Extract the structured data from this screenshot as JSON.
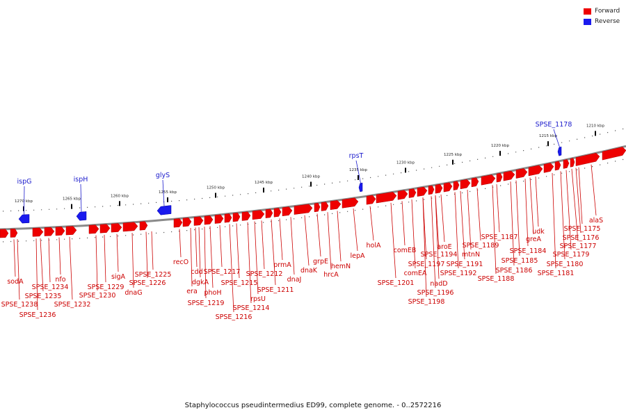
{
  "legend": {
    "forward": {
      "label": "Forward",
      "color": "#ee0000"
    },
    "reverse": {
      "label": "Reverse",
      "color": "#1a1aee"
    }
  },
  "colors": {
    "backbone": "#8a8a8a",
    "forward": "#ee0000",
    "reverse": "#1a1aee",
    "forward_label": "#cc0000",
    "reverse_label": "#1a1acc"
  },
  "caption": "Staphylococcus pseudintermedius ED99, complete genome. - 0..2572216",
  "scale_ticks": [
    "1270 kbp",
    "1265 kbp",
    "1260 kbp",
    "1255 kbp",
    "1250 kbp",
    "1245 kbp",
    "1240 kbp",
    "1235 kbp",
    "1230 kbp",
    "1225 kbp",
    "1220 kbp",
    "1215 kbp",
    "1210 kbp"
  ],
  "reverse_genes": [
    "ispG",
    "ispH",
    "glyS",
    "rpsT",
    "SPSE_1178"
  ],
  "forward_genes": [
    "sodA",
    "SPSE_1238",
    "SPSE_1236",
    "SPSE_1235",
    "SPSE_1234",
    "nfo",
    "SPSE_1232",
    "SPSE_1230",
    "SPSE_1229",
    "sigA",
    "dnaG",
    "SPSE_1226",
    "SPSE_1225",
    "recO",
    "era",
    "cdd",
    "dgkA",
    "SPSE_1219",
    "phoH",
    "SPSE_1217",
    "SPSE_1216",
    "SPSE_1215",
    "SPSE_1214",
    "rpsU",
    "SPSE_1212",
    "SPSE_1211",
    "prmA",
    "dnaJ",
    "dnaK",
    "grpE",
    "hrcA",
    "hemN",
    "lepA",
    "holA",
    "SPSE_1201",
    "comEB",
    "comEA",
    "SPSE_1198",
    "SPSE_1197",
    "SPSE_1196",
    "SPSE_1194",
    "nadD",
    "aroE",
    "SPSE_1192",
    "SPSE_1191",
    "mtnN",
    "SPSE_1189",
    "SPSE_1188",
    "SPSE_1187",
    "SPSE_1186",
    "SPSE_1185",
    "SPSE_1184",
    "greA",
    "udk",
    "SPSE_1181",
    "SPSE_1180",
    "SPSE_1179",
    "SPSE_1177",
    "SPSE_1176",
    "SPSE_1175",
    "alaS"
  ]
}
